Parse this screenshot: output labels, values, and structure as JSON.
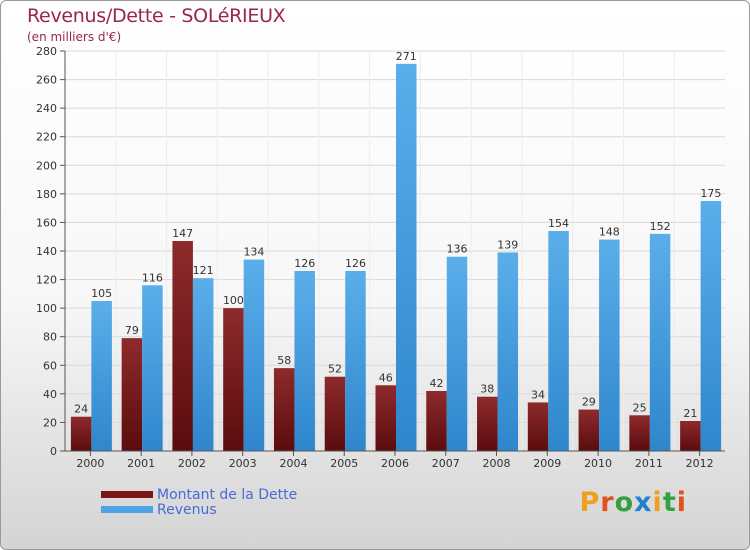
{
  "chart_data": {
    "type": "bar",
    "title": "Revenus/Dette - SOLéRIEUX",
    "subtitle": "(en milliers d'€)",
    "categories": [
      "2000",
      "2001",
      "2002",
      "2003",
      "2004",
      "2005",
      "2006",
      "2007",
      "2008",
      "2009",
      "2010",
      "2011",
      "2012"
    ],
    "series": [
      {
        "name": "Montant de la Dette",
        "color": "#7a1518",
        "values": [
          24,
          79,
          147,
          100,
          58,
          52,
          46,
          42,
          38,
          34,
          29,
          25,
          21
        ]
      },
      {
        "name": "Revenus",
        "color": "#4da3e6",
        "values": [
          105,
          116,
          121,
          134,
          126,
          126,
          271,
          136,
          139,
          154,
          148,
          152,
          175
        ]
      }
    ],
    "ylim": [
      0,
      280
    ],
    "yticks": [
      0,
      20,
      40,
      60,
      80,
      100,
      120,
      140,
      160,
      180,
      200,
      220,
      240,
      260,
      280
    ],
    "grid": true,
    "legend_position": "bottom-left"
  },
  "branding": {
    "logo_letters": [
      "P",
      "r",
      "o",
      "x",
      "i",
      "t",
      "i"
    ],
    "logo_colors": [
      "#f0a020",
      "#e05020",
      "#35a040",
      "#2080d0",
      "#f0a020",
      "#35a040",
      "#e05020"
    ]
  }
}
